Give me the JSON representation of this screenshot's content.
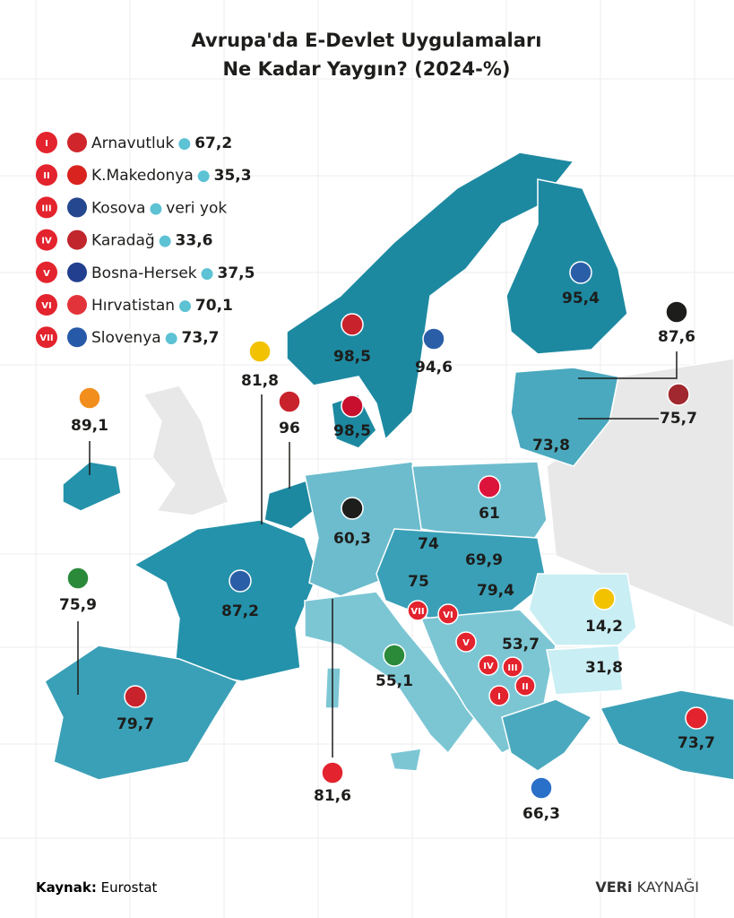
{
  "title": [
    "Avrupa'da E-Devlet Uygulamaları",
    "Ne Kadar Yaygın? (2024-%)"
  ],
  "legend": [
    {
      "numeral": "I",
      "country": "Arnavutluk",
      "value": "67,2"
    },
    {
      "numeral": "II",
      "country": "K.Makedonya",
      "value": "35,3"
    },
    {
      "numeral": "III",
      "country": "Kosova",
      "value": "veri yok"
    },
    {
      "numeral": "IV",
      "country": "Karadağ",
      "value": "33,6"
    },
    {
      "numeral": "V",
      "country": "Bosna-Hersek",
      "value": "37,5"
    },
    {
      "numeral": "VI",
      "country": "Hırvatistan",
      "value": "70,1"
    },
    {
      "numeral": "VII",
      "country": "Slovenya",
      "value": "73,7"
    }
  ],
  "map_values": [
    "95,4",
    "87,6",
    "75,7",
    "73,8",
    "98,5",
    "94,6",
    "98,5",
    "81,8",
    "96",
    "89,1",
    "61",
    "60,3",
    "74",
    "69,9",
    "75",
    "79,4",
    "14,2",
    "87,2",
    "75,9",
    "53,7",
    "31,8",
    "55,1",
    "79,7",
    "81,6",
    "73,7",
    "66,3"
  ],
  "source": {
    "label": "Kaynak:",
    "name": "Eurostat"
  },
  "brand": {
    "bold": "VERi",
    "rest": "KAYNAĞI"
  }
}
